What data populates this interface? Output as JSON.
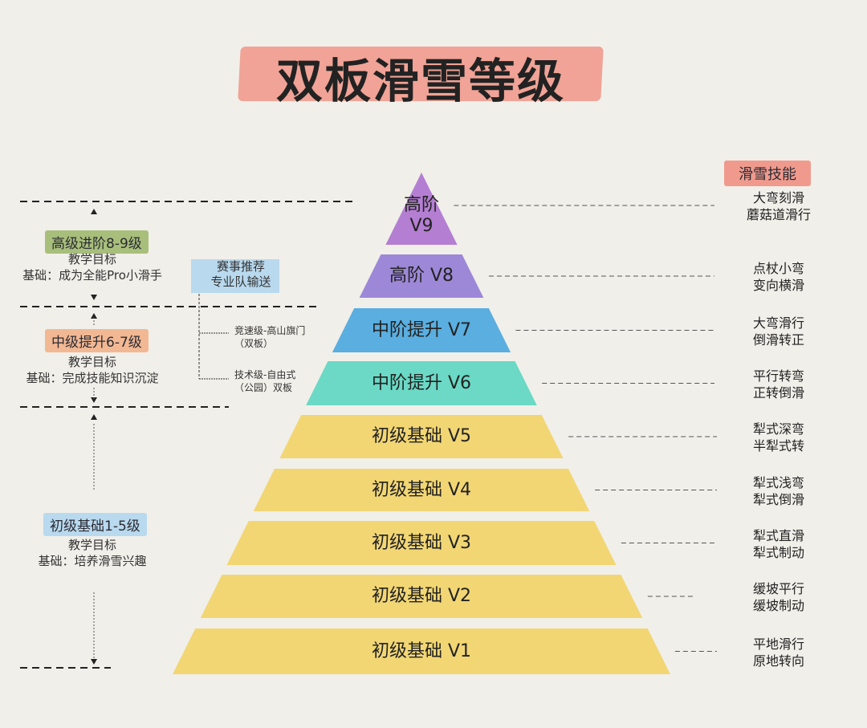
{
  "title": "双板滑雪等级",
  "skills_header": "滑雪技能",
  "colors": {
    "purple": "#b47fd2",
    "violet": "#9d88d8",
    "blue": "#5aaee0",
    "teal": "#6bd9c5",
    "yellow": "#f2d674",
    "title_bg": "#f09a8d",
    "green_tag": "#a8bf7c",
    "orange_tag": "#f2b894",
    "blue_tag": "#b9d9ee"
  },
  "tiers": [
    {
      "lines": [
        "高阶",
        "V9"
      ],
      "color": "#b47fd2",
      "skills": [
        "大弯刻滑",
        "蘑菇道滑行"
      ]
    },
    {
      "lines": [
        "高阶 V8"
      ],
      "color": "#9d88d8",
      "skills": [
        "点杖小弯",
        "变向横滑"
      ]
    },
    {
      "lines": [
        "中阶提升 V7"
      ],
      "color": "#5aaee0",
      "skills": [
        "大弯滑行",
        "倒滑转正"
      ]
    },
    {
      "lines": [
        "中阶提升 V6"
      ],
      "color": "#6bd9c5",
      "skills": [
        "平行转弯",
        "正转倒滑"
      ]
    },
    {
      "lines": [
        "初级基础 V5"
      ],
      "color": "#f2d674",
      "skills": [
        "犁式深弯",
        "半犁式转"
      ]
    },
    {
      "lines": [
        "初级基础 V4"
      ],
      "color": "#f2d674",
      "skills": [
        "犁式浅弯",
        "犁式倒滑"
      ]
    },
    {
      "lines": [
        "初级基础 V3"
      ],
      "color": "#f2d674",
      "skills": [
        "犁式直滑",
        "犁式制动"
      ]
    },
    {
      "lines": [
        "初级基础 V2"
      ],
      "color": "#f2d674",
      "skills": [
        "缓坡平行",
        "缓坡制动"
      ]
    },
    {
      "lines": [
        "初级基础 V1"
      ],
      "color": "#f2d674",
      "skills": [
        "平地滑行",
        "原地转向"
      ]
    }
  ],
  "stages": [
    {
      "tag": "高级进阶8-9级",
      "goal": "教学目标",
      "basis": "基础：成为全能Pro小滑手"
    },
    {
      "tag": "中级提升6-7级",
      "goal": "教学目标",
      "basis": "基础：完成技能知识沉淀"
    },
    {
      "tag": "初级基础1-5级",
      "goal": "教学目标",
      "basis": "基础：培养滑雪兴趣"
    }
  ],
  "competition": {
    "lines": [
      "赛事推荐",
      "专业队输送"
    ],
    "branches": [
      [
        "竞速级-高山旗门",
        "（双板）"
      ],
      [
        "技术级-自由式",
        "（公园）双板"
      ]
    ]
  }
}
